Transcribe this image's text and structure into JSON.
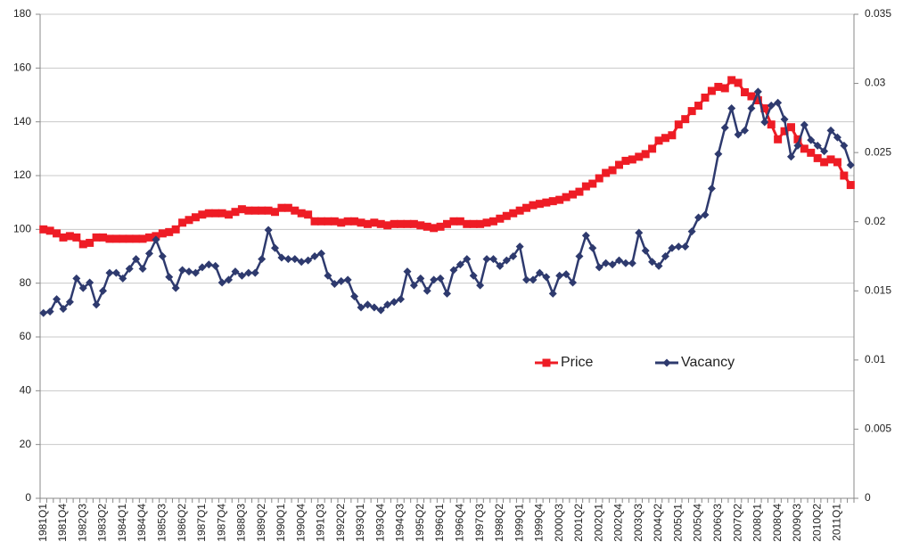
{
  "chart_data": {
    "type": "line",
    "categories": [
      "1981Q1",
      null,
      null,
      "1981Q4",
      null,
      null,
      "1982Q3",
      null,
      null,
      "1983Q2",
      null,
      null,
      "1984Q1",
      null,
      null,
      "1984Q4",
      null,
      null,
      "1985Q3",
      null,
      null,
      "1986Q2",
      null,
      null,
      "1987Q1",
      null,
      null,
      "1987Q4",
      null,
      null,
      "1988Q3",
      null,
      null,
      "1989Q2",
      null,
      null,
      "1990Q1",
      null,
      null,
      "1990Q4",
      null,
      null,
      "1991Q3",
      null,
      null,
      "1992Q2",
      null,
      null,
      "1993Q1",
      null,
      null,
      "1993Q4",
      null,
      null,
      "1994Q3",
      null,
      null,
      "1995Q2",
      null,
      null,
      "1996Q1",
      null,
      null,
      "1996Q4",
      null,
      null,
      "1997Q3",
      null,
      null,
      "1998Q2",
      null,
      null,
      "1999Q1",
      null,
      null,
      "1999Q4",
      null,
      null,
      "2000Q3",
      null,
      null,
      "2001Q2",
      null,
      null,
      "2002Q1",
      null,
      null,
      "2002Q4",
      null,
      null,
      "2003Q3",
      null,
      null,
      "2004Q2",
      null,
      null,
      "2005Q1",
      null,
      null,
      "2005Q4",
      null,
      null,
      "2006Q3",
      null,
      null,
      "2007Q2",
      null,
      null,
      "2008Q1",
      null,
      null,
      "2008Q4",
      null,
      null,
      "2009Q3",
      null,
      null,
      "2010Q2",
      null,
      null,
      "2011Q1",
      null,
      null
    ],
    "series": [
      {
        "name": "Price",
        "color": "#ee1c25",
        "marker": "square",
        "values": [
          100,
          99.5,
          98.5,
          97,
          97.5,
          97,
          94.5,
          95,
          97,
          97,
          96.5,
          96.5,
          96.5,
          96.5,
          96.5,
          96.5,
          97,
          97.5,
          98.5,
          99,
          100,
          102.5,
          103.5,
          104.5,
          105.5,
          106,
          106,
          106,
          105.5,
          106.5,
          107.5,
          107,
          107,
          107,
          107,
          106.5,
          108,
          108,
          107,
          106,
          105.5,
          103,
          103,
          103,
          103,
          102.5,
          103,
          103,
          102.5,
          102,
          102.5,
          102,
          101.5,
          102,
          102,
          102,
          102,
          101.5,
          101,
          100.5,
          101,
          102,
          103,
          103,
          102,
          102,
          102,
          102.5,
          103,
          104,
          105,
          106,
          107,
          108,
          109,
          109.5,
          110,
          110.5,
          111,
          112,
          113,
          114,
          116,
          117,
          119,
          121,
          122,
          124,
          125.5,
          126,
          127,
          128,
          130,
          133,
          134,
          135,
          139,
          141,
          144,
          146,
          149,
          151.5,
          153,
          152.5,
          155.5,
          154.5,
          151,
          149.5,
          148,
          145,
          139,
          133.5,
          136.5,
          138,
          133.5,
          130,
          128.5,
          126.5,
          125,
          126,
          125,
          120,
          116.5
        ]
      },
      {
        "name": "Vacancy",
        "color": "#2e3a6e",
        "marker": "diamond",
        "axis": "y2",
        "values": [
          0.0134,
          0.0135,
          0.0144,
          0.0137,
          0.0142,
          0.0159,
          0.0152,
          0.0156,
          0.014,
          0.015,
          0.0163,
          0.0163,
          0.0159,
          0.0166,
          0.0173,
          0.0166,
          0.0177,
          0.0187,
          0.0175,
          0.016,
          0.0152,
          0.0165,
          0.0164,
          0.0163,
          0.0167,
          0.0169,
          0.0168,
          0.0156,
          0.0158,
          0.0164,
          0.0161,
          0.0163,
          0.0163,
          0.0173,
          0.0194,
          0.0181,
          0.0174,
          0.0173,
          0.0173,
          0.0171,
          0.0172,
          0.0175,
          0.0177,
          0.0161,
          0.0155,
          0.0157,
          0.0158,
          0.0146,
          0.0138,
          0.014,
          0.0138,
          0.0136,
          0.014,
          0.0142,
          0.0144,
          0.0164,
          0.0154,
          0.0159,
          0.015,
          0.0158,
          0.0159,
          0.0148,
          0.0165,
          0.0169,
          0.0173,
          0.0161,
          0.0154,
          0.0173,
          0.0173,
          0.0168,
          0.0172,
          0.0175,
          0.0182,
          0.0158,
          0.0158,
          0.0163,
          0.016,
          0.0148,
          0.0161,
          0.0162,
          0.0156,
          0.0175,
          0.019,
          0.0181,
          0.0167,
          0.017,
          0.0169,
          0.0172,
          0.017,
          0.017,
          0.0192,
          0.0179,
          0.0171,
          0.0168,
          0.0175,
          0.0181,
          0.0182,
          0.0182,
          0.0193,
          0.0203,
          0.0205,
          0.0224,
          0.0249,
          0.0268,
          0.0282,
          0.0263,
          0.0266,
          0.0282,
          0.0294,
          0.0272,
          0.0284,
          0.0286,
          0.0274,
          0.0247,
          0.0255,
          0.027,
          0.0259,
          0.0255,
          0.0251,
          0.0266,
          0.0261,
          0.0255,
          0.0241
        ]
      }
    ],
    "ylim": [
      0,
      180
    ],
    "yticks": [
      0,
      20,
      40,
      60,
      80,
      100,
      120,
      140,
      160,
      180
    ],
    "y2lim": [
      0,
      0.035
    ],
    "y2ticks": [
      0,
      0.005,
      0.01,
      0.015,
      0.02,
      0.025,
      0.03,
      0.035
    ],
    "grid": true
  }
}
